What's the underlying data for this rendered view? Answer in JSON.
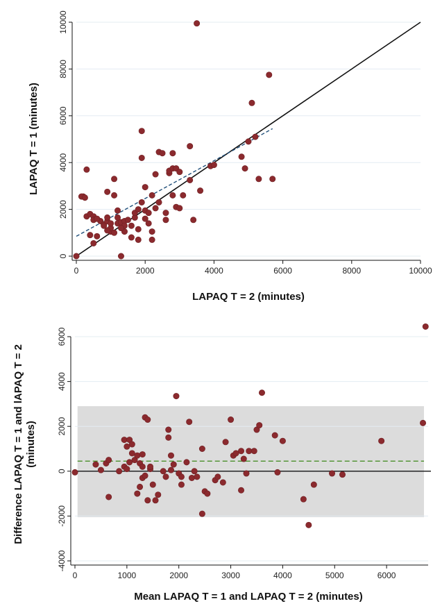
{
  "chart_data": [
    {
      "type": "scatter",
      "xlabel": "LAPAQ T = 2 (minutes)",
      "ylabel": "LAPAQ T = 1 (minutes)",
      "xlim": [
        0,
        10000
      ],
      "ylim": [
        0,
        10000
      ],
      "xticks": [
        "0",
        "2000",
        "4000",
        "6000",
        "8000",
        "10000"
      ],
      "yticks": [
        "0",
        "2000",
        "4000",
        "6000",
        "8000",
        "10000"
      ],
      "grid": true,
      "colors": {
        "points": "#8b2a2e",
        "identity_line": "#111111",
        "fit_line": "#1f4e79",
        "grid": "#e3ecf2"
      },
      "lines": [
        {
          "kind": "identity",
          "style": "solid",
          "x": [
            0,
            10000
          ],
          "y": [
            0,
            10000
          ]
        },
        {
          "kind": "regression",
          "style": "dashed",
          "x": [
            0,
            5700
          ],
          "y": [
            850,
            5450
          ]
        }
      ],
      "series": [
        {
          "x": [
            0,
            200,
            300,
            300,
            400,
            400,
            500,
            500,
            500,
            600,
            700,
            800,
            800,
            900,
            900,
            900,
            1000,
            1000,
            1100,
            1100,
            1200,
            1200,
            1200,
            1300,
            1300,
            1400,
            1400,
            1400,
            1500,
            1600,
            1700,
            1700,
            1800,
            1800,
            1800,
            1900,
            1900,
            2000,
            2000,
            2000,
            2100,
            2100,
            2200,
            2200,
            2300,
            2300,
            2400,
            2400,
            2500,
            2600,
            2600,
            2700,
            2700,
            2800,
            2800,
            2800,
            2900,
            2900,
            3000,
            3000,
            3100,
            3300,
            3300,
            3400,
            3500,
            3600,
            3900,
            4000,
            4800,
            4900,
            5000,
            5100,
            5200,
            5300,
            5600,
            5700,
            150,
            250,
            600,
            1100,
            1300,
            1600,
            1900,
            2200,
            900,
            1000
          ],
          "y": [
            0,
            2550,
            1700,
            3700,
            1800,
            900,
            550,
            1700,
            1550,
            850,
            1500,
            1350,
            1300,
            1500,
            1650,
            2750,
            1050,
            1200,
            2600,
            3300,
            1400,
            1650,
            1950,
            0,
            1450,
            1500,
            1050,
            1300,
            1550,
            800,
            1650,
            1850,
            2000,
            1150,
            700,
            5350,
            4200,
            1600,
            1950,
            2950,
            1400,
            1850,
            700,
            1050,
            2050,
            3500,
            2300,
            4450,
            4400,
            1850,
            1550,
            3550,
            3650,
            2600,
            3750,
            4400,
            3750,
            2100,
            2050,
            3600,
            2600,
            4700,
            3250,
            1550,
            9950,
            2800,
            3850,
            3900,
            4250,
            3750,
            4900,
            6550,
            5100,
            3300,
            7750,
            3300,
            2550,
            2500,
            1600,
            1000,
            1200,
            1300,
            2300,
            2600,
            1100,
            1400
          ]
        }
      ]
    },
    {
      "type": "scatter",
      "xlabel": "Mean LAPAQ T = 1 and LAPAQ T = 2 (minutes)",
      "ylabel_line1": "Difference LAPAQ T = 1 and lAPAQ T = 2",
      "ylabel_line2": "(minutes)",
      "xlim": [
        0,
        6800
      ],
      "ylim": [
        -4000,
        6000
      ],
      "xticks": [
        "0",
        "1000",
        "2000",
        "3000",
        "4000",
        "5000",
        "6000"
      ],
      "yticks": [
        "-4000",
        "-2000",
        "0",
        "2000",
        "4000",
        "6000"
      ],
      "grid": true,
      "limits_of_agreement": {
        "mean": 450,
        "lower": -2050,
        "upper": 2900,
        "x_range": [
          50,
          6720
        ]
      },
      "colors": {
        "points": "#8b2a2e",
        "band": "#dcdcdc",
        "mean_line": "#4a8f2a",
        "zero_line": "#111111",
        "grid": "#e3ecf2"
      },
      "series": [
        {
          "x": [
            0,
            400,
            500,
            600,
            650,
            650,
            850,
            950,
            950,
            1000,
            1000,
            1050,
            1050,
            1100,
            1100,
            1150,
            1200,
            1200,
            1250,
            1250,
            1300,
            1300,
            1300,
            1350,
            1350,
            1400,
            1400,
            1450,
            1450,
            1500,
            1550,
            1600,
            1700,
            1750,
            1800,
            1800,
            1850,
            1850,
            1900,
            1950,
            2000,
            2050,
            2050,
            2150,
            2200,
            2250,
            2300,
            2350,
            2450,
            2450,
            2500,
            2550,
            2700,
            2750,
            2850,
            2900,
            3000,
            3050,
            3100,
            3200,
            3200,
            3250,
            3300,
            3350,
            3450,
            3500,
            3550,
            3600,
            3850,
            3900,
            4000,
            4400,
            4500,
            4600,
            4950,
            5150,
            5900,
            6700,
            6750
          ],
          "y": [
            -50,
            300,
            50,
            350,
            -1150,
            500,
            0,
            1400,
            200,
            100,
            1100,
            400,
            1400,
            1200,
            800,
            500,
            700,
            -1000,
            350,
            -700,
            -300,
            750,
            200,
            2400,
            -200,
            -1300,
            2300,
            100,
            200,
            -600,
            -1300,
            -1050,
            0,
            -250,
            1850,
            1500,
            50,
            700,
            300,
            3350,
            -100,
            -250,
            -600,
            400,
            2200,
            -300,
            0,
            -250,
            -1900,
            1000,
            -900,
            -1000,
            -400,
            -250,
            -500,
            1300,
            2300,
            700,
            800,
            900,
            -850,
            550,
            -100,
            900,
            900,
            1850,
            2050,
            3500,
            1600,
            -50,
            1350,
            -1250,
            -2400,
            -600,
            -100,
            -150,
            1350,
            2150,
            6450
          ]
        }
      ]
    }
  ]
}
